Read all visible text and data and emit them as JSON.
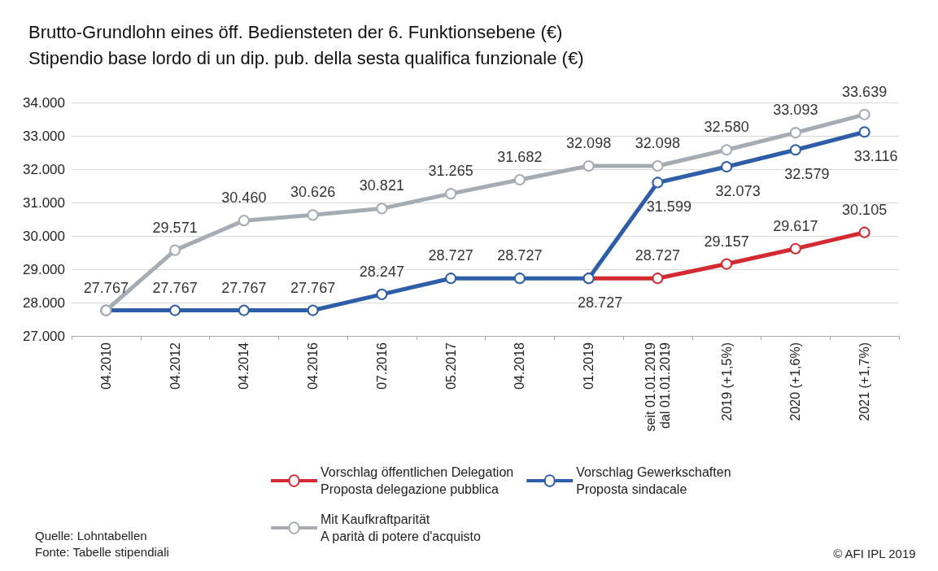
{
  "chart_data": {
    "type": "line",
    "title": "Brutto-Grundlohn eines öff. Bediensteten der 6. Funktionsebene (€)\nStipendio base lordo di un dip. pub. della sesta qualifica funzionale (€)",
    "categories": [
      "04.2010",
      "04.2012",
      "04.2014",
      "04.2016",
      "07.2016",
      "05.2017",
      "04.2018",
      "01.2019",
      "seit 01.01.2019\ndal 01.01.2019",
      "2019 (+1,5%)",
      "2020 (+1,6%)",
      "2021 (+1,7%)"
    ],
    "series": [
      {
        "name": "Vorschlag öffentlichen Delegation\nProposta delegazione pubblica",
        "color": "#d42a32",
        "values": [
          null,
          null,
          null,
          null,
          null,
          null,
          null,
          28727,
          28727,
          29157,
          29617,
          30105
        ],
        "value_labels": [
          null,
          null,
          null,
          null,
          null,
          null,
          null,
          "28.727",
          "28.727",
          "29.157",
          "29.617",
          "30.105"
        ]
      },
      {
        "name": "Vorschlag Gewerkschaften\nProposta sindacale",
        "color": "#2e5ea8",
        "values": [
          27767,
          27767,
          27767,
          27767,
          28247,
          28727,
          28727,
          28727,
          31599,
          32073,
          32579,
          33116
        ],
        "value_labels": [
          null,
          "27.767",
          "27.767",
          "27.767",
          "28.247",
          "28.727",
          "28.727",
          null,
          "31.599",
          "32.073",
          "32.579",
          "33.116"
        ]
      },
      {
        "name": "Mit Kaufkraftparität\nA parità di potere d'acquisto",
        "color": "#a6acb4",
        "values": [
          27767,
          29571,
          30460,
          30626,
          30821,
          31265,
          31682,
          32098,
          32098,
          32580,
          33093,
          33639
        ],
        "value_labels": [
          "27.767",
          "29.571",
          "30.460",
          "30.626",
          "30.821",
          "31.265",
          "31.682",
          "32.098",
          "32.098",
          "32.580",
          "33.093",
          "33.639"
        ]
      }
    ],
    "ylim": [
      27000,
      34000
    ],
    "yticks": [
      {
        "value": 27000,
        "label": "27.000"
      },
      {
        "value": 28000,
        "label": "28.000"
      },
      {
        "value": 29000,
        "label": "29.000"
      },
      {
        "value": 30000,
        "label": "30.000"
      },
      {
        "value": 31000,
        "label": "31.000"
      },
      {
        "value": 32000,
        "label": "32.000"
      },
      {
        "value": 33000,
        "label": "33.000"
      },
      {
        "value": 34000,
        "label": "34.000"
      }
    ],
    "grid": "y",
    "legend": "bottom",
    "marker": "circle",
    "line_style": "solid",
    "annotations": [
      "Quelle: Lohntabellen\nFonte: Tabelle stipendiali",
      "© AFI IPL 2019"
    ]
  }
}
